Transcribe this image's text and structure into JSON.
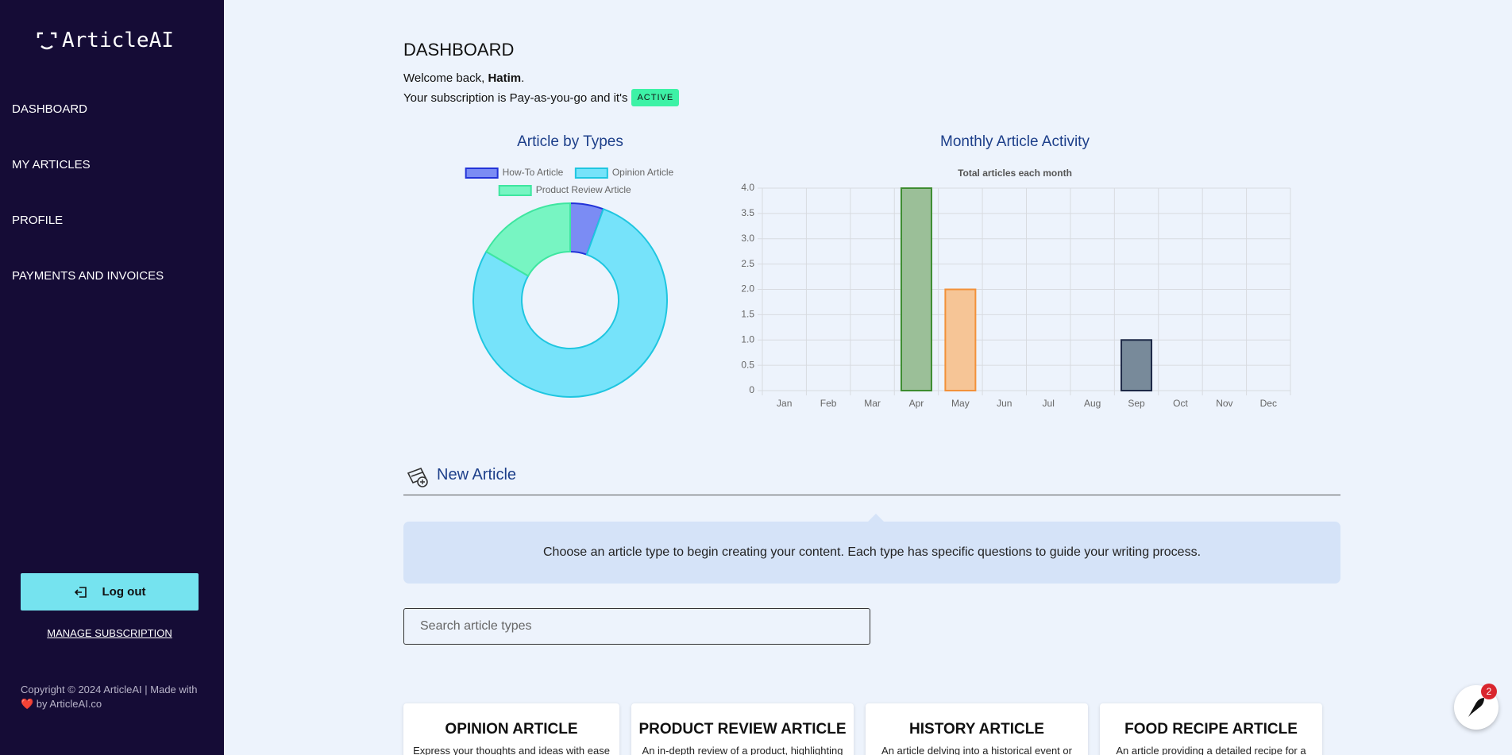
{
  "sidebar": {
    "logo": "ArticleAI",
    "nav": [
      "DASHBOARD",
      "MY ARTICLES",
      "PROFILE",
      "PAYMENTS AND INVOICES"
    ],
    "logout": "Log out",
    "manage": "MANAGE SUBSCRIPTION",
    "copyright": "Copyright © 2024 ArticleAI | Made with ❤️ by ArticleAI.co"
  },
  "header": {
    "title": "DASHBOARD",
    "welcome": "Welcome back,",
    "user": "Hatim",
    "subscription": "Your subscription is Pay-as-you-go and it's",
    "status": "ACTIVE"
  },
  "chart_data": [
    {
      "type": "doughnut",
      "title": "Article by Types",
      "categories": [
        "How-To Article",
        "Opinion Article",
        "Product Review Article"
      ],
      "values": [
        1,
        14,
        3
      ],
      "colors": [
        "#7b8cf4",
        "#76e3fa",
        "#77f5c2"
      ],
      "border_colors": [
        "#2233d8",
        "#1fc6e0",
        "#3ee6a0"
      ]
    },
    {
      "type": "bar",
      "title": "Monthly Article Activity",
      "subtitle": "Total articles each month",
      "categories": [
        "Jan",
        "Feb",
        "Mar",
        "Apr",
        "May",
        "Jun",
        "Jul",
        "Aug",
        "Sep",
        "Oct",
        "Nov",
        "Dec"
      ],
      "values": [
        0,
        0,
        0,
        4,
        2,
        0,
        0,
        0,
        1,
        0,
        0,
        0
      ],
      "colors": [
        null,
        null,
        null,
        "#9bbf98",
        "#f6c596",
        null,
        null,
        null,
        "#788a9a",
        null,
        null,
        null
      ],
      "border_colors": [
        null,
        null,
        null,
        "#3d8c2f",
        "#f2913a",
        null,
        null,
        null,
        "#1d2846",
        null,
        null,
        null
      ],
      "ylim": [
        0,
        4
      ],
      "yticks": [
        0,
        0.5,
        {
          "value": 1,
          "label": "1.0"
        },
        1.5,
        {
          "value": 2,
          "label": "2.0"
        },
        2.5,
        {
          "value": 3,
          "label": "3.0"
        },
        3.5,
        {
          "value": 4,
          "label": "4.0"
        }
      ],
      "grid": true
    }
  ],
  "new_article": {
    "title": "New Article",
    "info": "Choose an article type to begin creating your content. Each type has specific questions to guide your writing process.",
    "search_placeholder": "Search article types",
    "cards": [
      {
        "title": "OPINION ARTICLE",
        "description": "Express your thoughts and ideas with ease"
      },
      {
        "title": "PRODUCT REVIEW ARTICLE",
        "description": "An in-depth review of a product, highlighting"
      },
      {
        "title": "HISTORY ARTICLE",
        "description": "An article delving into a historical event or"
      },
      {
        "title": "FOOD RECIPE ARTICLE",
        "description": "An article providing a detailed recipe for a"
      }
    ]
  },
  "notification_count": 2
}
